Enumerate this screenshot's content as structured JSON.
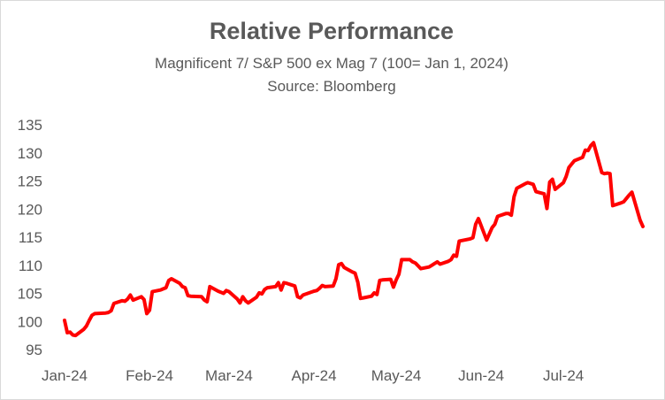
{
  "chart_data": {
    "type": "line",
    "title": "Relative Performance",
    "subtitle": "Magnificent 7/ S&P 500 ex Mag 7 (100= Jan 1, 2024)",
    "source": "Source: Bloomberg",
    "xlabel": "",
    "ylabel": "",
    "ylim": [
      95,
      135
    ],
    "yticks": [
      95,
      100,
      105,
      110,
      115,
      120,
      125,
      130,
      135
    ],
    "xlim": [
      "2024-01-01",
      "2024-07-30"
    ],
    "xticks": [
      {
        "date": "2024-01-01",
        "label": "Jan-24"
      },
      {
        "date": "2024-02-01",
        "label": "Feb-24"
      },
      {
        "date": "2024-03-01",
        "label": "Mar-24"
      },
      {
        "date": "2024-04-01",
        "label": "Apr-24"
      },
      {
        "date": "2024-05-01",
        "label": "May-24"
      },
      {
        "date": "2024-06-01",
        "label": "Jun-24"
      },
      {
        "date": "2024-07-01",
        "label": "Jul-24"
      }
    ],
    "grid": false,
    "legend": "none",
    "line_color": "#ff0000",
    "series": [
      {
        "x": [
          "2024-01-01",
          "2024-01-02",
          "2024-01-03",
          "2024-01-04",
          "2024-01-05",
          "2024-01-08",
          "2024-01-09",
          "2024-01-10",
          "2024-01-11",
          "2024-01-12",
          "2024-01-16",
          "2024-01-17",
          "2024-01-18",
          "2024-01-19",
          "2024-01-22",
          "2024-01-23",
          "2024-01-24",
          "2024-01-25",
          "2024-01-26",
          "2024-01-29",
          "2024-01-30",
          "2024-01-31",
          "2024-02-01",
          "2024-02-02",
          "2024-02-05",
          "2024-02-06",
          "2024-02-07",
          "2024-02-08",
          "2024-02-09",
          "2024-02-12",
          "2024-02-13",
          "2024-02-14",
          "2024-02-15",
          "2024-02-16",
          "2024-02-20",
          "2024-02-21",
          "2024-02-22",
          "2024-02-23",
          "2024-02-26",
          "2024-02-27",
          "2024-02-28",
          "2024-02-29",
          "2024-03-01",
          "2024-03-04",
          "2024-03-05",
          "2024-03-06",
          "2024-03-07",
          "2024-03-08",
          "2024-03-11",
          "2024-03-12",
          "2024-03-13",
          "2024-03-14",
          "2024-03-15",
          "2024-03-18",
          "2024-03-19",
          "2024-03-20",
          "2024-03-21",
          "2024-03-22",
          "2024-03-25",
          "2024-03-26",
          "2024-03-27",
          "2024-03-28",
          "2024-04-01",
          "2024-04-02",
          "2024-04-03",
          "2024-04-04",
          "2024-04-05",
          "2024-04-08",
          "2024-04-09",
          "2024-04-10",
          "2024-04-11",
          "2024-04-12",
          "2024-04-15",
          "2024-04-16",
          "2024-04-17",
          "2024-04-18",
          "2024-04-19",
          "2024-04-22",
          "2024-04-23",
          "2024-04-24",
          "2024-04-25",
          "2024-04-26",
          "2024-04-29",
          "2024-04-30",
          "2024-05-01",
          "2024-05-02",
          "2024-05-03",
          "2024-05-06",
          "2024-05-07",
          "2024-05-08",
          "2024-05-09",
          "2024-05-10",
          "2024-05-13",
          "2024-05-14",
          "2024-05-15",
          "2024-05-16",
          "2024-05-17",
          "2024-05-20",
          "2024-05-21",
          "2024-05-22",
          "2024-05-23",
          "2024-05-24",
          "2024-05-28",
          "2024-05-29",
          "2024-05-30",
          "2024-05-31",
          "2024-06-03",
          "2024-06-04",
          "2024-06-05",
          "2024-06-06",
          "2024-06-07",
          "2024-06-10",
          "2024-06-11",
          "2024-06-12",
          "2024-06-13",
          "2024-06-14",
          "2024-06-17",
          "2024-06-18",
          "2024-06-20",
          "2024-06-21",
          "2024-06-24",
          "2024-06-25",
          "2024-06-26",
          "2024-06-27",
          "2024-06-28",
          "2024-07-01",
          "2024-07-02",
          "2024-07-03",
          "2024-07-05",
          "2024-07-08",
          "2024-07-09",
          "2024-07-10",
          "2024-07-11",
          "2024-07-12",
          "2024-07-15",
          "2024-07-16",
          "2024-07-17",
          "2024-07-18",
          "2024-07-19",
          "2024-07-22",
          "2024-07-23",
          "2024-07-24",
          "2024-07-25",
          "2024-07-26",
          "2024-07-29",
          "2024-07-30"
        ],
        "values": [
          100.2,
          98.0,
          98.1,
          97.6,
          97.5,
          98.6,
          99.2,
          100.2,
          101.1,
          101.4,
          101.5,
          101.6,
          101.9,
          103.2,
          103.7,
          103.6,
          104.0,
          104.7,
          103.8,
          104.4,
          103.9,
          101.4,
          102.0,
          105.3,
          105.6,
          105.8,
          106.0,
          107.3,
          107.6,
          106.8,
          106.2,
          106.0,
          104.6,
          104.5,
          104.4,
          103.8,
          103.5,
          106.2,
          105.4,
          105.2,
          105.0,
          105.5,
          105.3,
          104.0,
          103.3,
          104.4,
          103.7,
          103.3,
          104.3,
          105.1,
          104.9,
          105.7,
          106.0,
          106.2,
          106.9,
          105.6,
          106.9,
          106.8,
          106.3,
          104.4,
          104.2,
          104.7,
          105.4,
          105.5,
          105.9,
          106.4,
          106.2,
          106.3,
          107.6,
          110.1,
          110.3,
          109.6,
          108.8,
          108.6,
          107.0,
          104.1,
          104.2,
          104.5,
          105.1,
          104.8,
          107.3,
          107.4,
          107.5,
          106.1,
          107.4,
          108.4,
          111.0,
          111.0,
          110.6,
          110.4,
          109.9,
          109.4,
          109.7,
          110.0,
          110.3,
          110.6,
          110.2,
          110.7,
          111.0,
          111.8,
          111.6,
          114.3,
          114.7,
          114.9,
          117.3,
          118.3,
          114.5,
          115.6,
          116.7,
          117.3,
          118.7,
          119.2,
          119.2,
          118.9,
          122.2,
          123.7,
          124.5,
          124.7,
          124.4,
          123.1,
          122.7,
          120.1,
          124.8,
          125.3,
          123.5,
          124.7,
          125.8,
          127.4,
          128.6,
          129.2,
          130.5,
          130.4,
          131.3,
          131.8,
          126.5,
          126.3,
          126.4,
          126.3,
          120.6,
          121.1,
          121.3,
          121.9,
          122.5,
          123.0,
          118.0,
          116.9
        ]
      }
    ]
  }
}
